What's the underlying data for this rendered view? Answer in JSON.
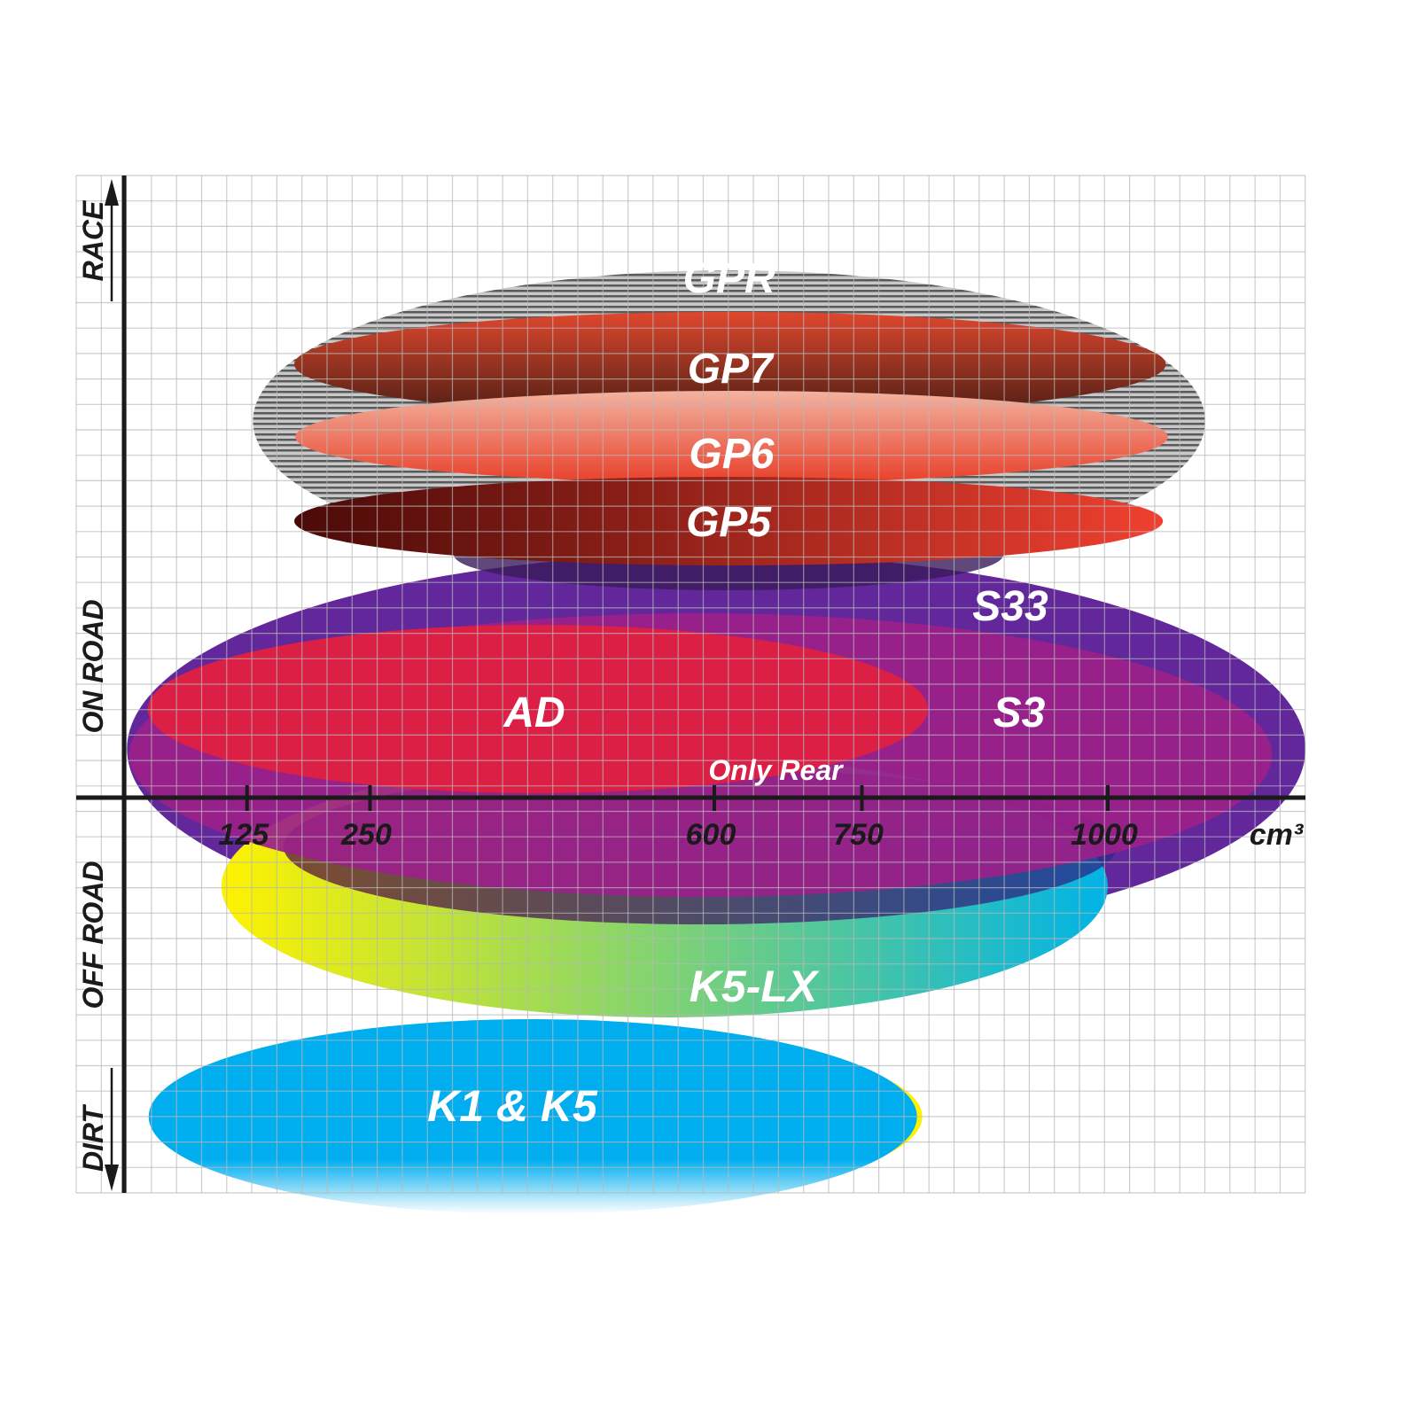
{
  "chart_data": {
    "type": "area",
    "title": "",
    "xlabel": "cm³",
    "ylabel": "",
    "x_ticks": [
      "125",
      "250",
      "600",
      "750",
      "1000"
    ],
    "x_tick_values": [
      125,
      250,
      600,
      750,
      1000
    ],
    "xlim": [
      0,
      1200
    ],
    "y_categories": [
      "RACE",
      "ON ROAD",
      "OFF ROAD",
      "DIRT"
    ],
    "grid": true,
    "series": [
      {
        "name": "GPR",
        "x_range_cc": [
          131,
          1099
        ],
        "colors": [
          "#9a9a9a",
          "#3a3a3a"
        ]
      },
      {
        "name": "GP7",
        "x_range_cc": [
          173,
          1059
        ],
        "colors": [
          "#e0472d",
          "#4a1e14"
        ]
      },
      {
        "name": "GP6",
        "x_range_cc": [
          174,
          1061
        ],
        "colors": [
          "#f2b3a0",
          "#e8402a"
        ]
      },
      {
        "name": "GP5",
        "x_range_cc": [
          173,
          1056
        ],
        "colors": [
          "#4a0a08",
          "#f04030"
        ]
      },
      {
        "name": "S33",
        "x_range_cc": [
          3,
          1201
        ],
        "colors": [
          "#62279a"
        ]
      },
      {
        "name": "S3",
        "x_range_cc": [
          5,
          1167
        ],
        "colors": [
          "#9b1f8a"
        ]
      },
      {
        "name": "AD",
        "x_range_cc": [
          24,
          817
        ],
        "colors": [
          "#dc1f45"
        ]
      },
      {
        "name": "K5-LX",
        "x_range_cc": [
          99,
          1000
        ],
        "colors": [
          "#fff200",
          "#00b3e6"
        ]
      },
      {
        "name": "K1 & K5",
        "x_range_cc": [
          25,
          806
        ],
        "colors": [
          "#00aeef",
          "#ffffff"
        ]
      }
    ],
    "annotations": [
      "Only Rear"
    ]
  }
}
